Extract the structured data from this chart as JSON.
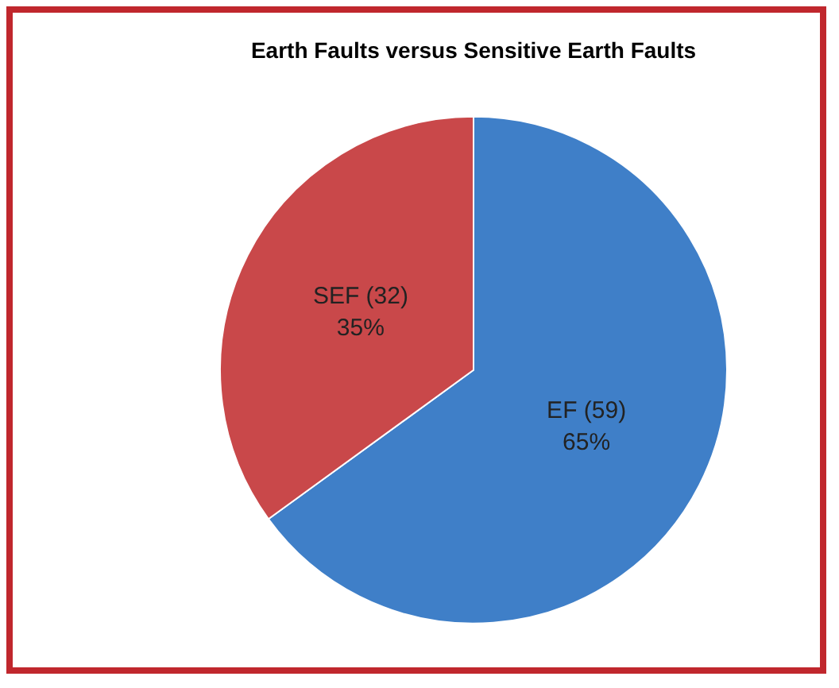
{
  "chart_data": {
    "type": "pie",
    "title": "Earth Faults versus Sensitive Earth Faults",
    "categories": [
      "EF (59)",
      "SEF (32)"
    ],
    "values": [
      65,
      35
    ],
    "colors": [
      "#3f7fc8",
      "#c9484a"
    ],
    "value_labels": [
      "65%",
      "35%"
    ],
    "legend": false
  }
}
